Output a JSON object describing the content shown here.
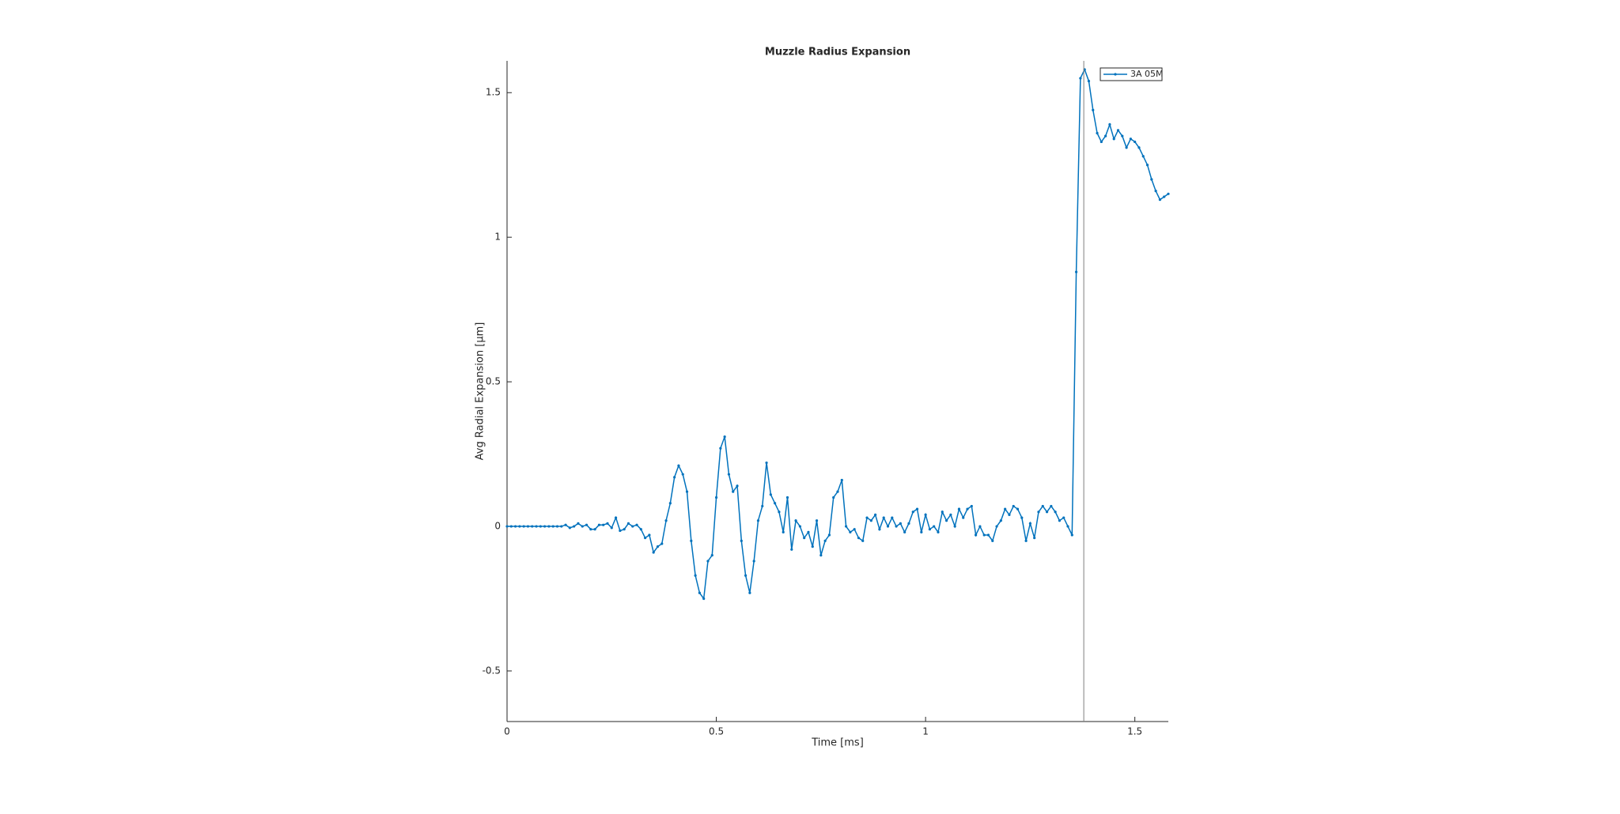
{
  "chart_data": {
    "type": "line",
    "title": "Muzzle Radius Expansion",
    "xlabel": "Time [ms]",
    "ylabel": "Avg Radial Expansion [μm]",
    "x": [
      0,
      0.01,
      0.02,
      0.03,
      0.04,
      0.05,
      0.06,
      0.07,
      0.08,
      0.09,
      0.1,
      0.11,
      0.12,
      0.13,
      0.14,
      0.15,
      0.16,
      0.17,
      0.18,
      0.19,
      0.2,
      0.21,
      0.22,
      0.23,
      0.24,
      0.25,
      0.26,
      0.27,
      0.28,
      0.29,
      0.3,
      0.31,
      0.32,
      0.33,
      0.34,
      0.35,
      0.36,
      0.37,
      0.38,
      0.39,
      0.4,
      0.41,
      0.42,
      0.43,
      0.44,
      0.45,
      0.46,
      0.47,
      0.48,
      0.49,
      0.5,
      0.51,
      0.52,
      0.53,
      0.54,
      0.55,
      0.56,
      0.57,
      0.58,
      0.59,
      0.6,
      0.61,
      0.62,
      0.63,
      0.64,
      0.65,
      0.66,
      0.67,
      0.68,
      0.69,
      0.7,
      0.71,
      0.72,
      0.73,
      0.74,
      0.75,
      0.76,
      0.77,
      0.78,
      0.79,
      0.8,
      0.81,
      0.82,
      0.83,
      0.84,
      0.85,
      0.86,
      0.87,
      0.88,
      0.89,
      0.9,
      0.91,
      0.92,
      0.93,
      0.94,
      0.95,
      0.96,
      0.97,
      0.98,
      0.99,
      1,
      1.01,
      1.02,
      1.03,
      1.04,
      1.05,
      1.06,
      1.07,
      1.08,
      1.09,
      1.1,
      1.11,
      1.12,
      1.13,
      1.14,
      1.15,
      1.16,
      1.17,
      1.18,
      1.19,
      1.2,
      1.21,
      1.22,
      1.23,
      1.24,
      1.25,
      1.26,
      1.27,
      1.28,
      1.29,
      1.3,
      1.31,
      1.32,
      1.33,
      1.34,
      1.35,
      1.36,
      1.37,
      1.38,
      1.39,
      1.4,
      1.41,
      1.42,
      1.43,
      1.44,
      1.45,
      1.46,
      1.47,
      1.48,
      1.49,
      1.5,
      1.51,
      1.52,
      1.53,
      1.54,
      1.55,
      1.56,
      1.57,
      1.58
    ],
    "series": [
      {
        "name": "3A 05M",
        "color": "#0072bd",
        "values": [
          0,
          0,
          0,
          0,
          0,
          0,
          0,
          0,
          0,
          0,
          0,
          0,
          0,
          0,
          0.005,
          -0.005,
          0,
          0.01,
          0,
          0.005,
          -0.01,
          -0.01,
          0.005,
          0.005,
          0.01,
          -0.005,
          0.03,
          -0.015,
          -0.01,
          0.01,
          0,
          0.005,
          -0.01,
          -0.04,
          -0.03,
          -0.09,
          -0.07,
          -0.06,
          0.02,
          0.08,
          0.17,
          0.21,
          0.18,
          0.12,
          -0.05,
          -0.17,
          -0.23,
          -0.25,
          -0.12,
          -0.1,
          0.1,
          0.27,
          0.31,
          0.18,
          0.12,
          0.14,
          -0.05,
          -0.17,
          -0.23,
          -0.12,
          0.02,
          0.07,
          0.22,
          0.11,
          0.08,
          0.05,
          -0.02,
          0.1,
          -0.08,
          0.02,
          0,
          -0.04,
          -0.02,
          -0.07,
          0.02,
          -0.1,
          -0.05,
          -0.03,
          0.1,
          0.12,
          0.16,
          0,
          -0.02,
          -0.01,
          -0.04,
          -0.05,
          0.03,
          0.02,
          0.04,
          -0.01,
          0.03,
          0,
          0.03,
          0,
          0.01,
          -0.02,
          0.01,
          0.05,
          0.06,
          -0.02,
          0.04,
          -0.01,
          0,
          -0.02,
          0.05,
          0.02,
          0.04,
          0,
          0.06,
          0.03,
          0.06,
          0.07,
          -0.03,
          0,
          -0.03,
          -0.03,
          -0.05,
          0,
          0.02,
          0.06,
          0.04,
          0.07,
          0.06,
          0.03,
          -0.05,
          0.01,
          -0.04,
          0.05,
          0.07,
          0.05,
          0.07,
          0.05,
          0.02,
          0.03,
          0,
          -0.03,
          0.88,
          1.55,
          1.58,
          1.54,
          1.44,
          1.36,
          1.33,
          1.35,
          1.39,
          1.34,
          1.37,
          1.35,
          1.31,
          1.34,
          1.33,
          1.31,
          1.28,
          1.25,
          1.2,
          1.16,
          1.13,
          1.14,
          1.15
        ]
      }
    ],
    "xline": 1.378,
    "xline_color": "#808080",
    "xlim": [
      0,
      1.58
    ],
    "xticks": [
      0,
      0.5,
      1,
      1.5
    ],
    "ylim": [
      -0.675,
      1.61
    ],
    "yticks": [
      -0.5,
      0,
      0.5,
      1,
      1.5
    ],
    "legend": "upper right"
  }
}
